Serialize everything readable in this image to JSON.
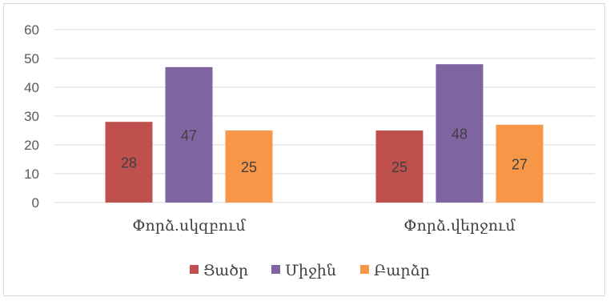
{
  "chart_data": {
    "type": "bar",
    "title": "",
    "xlabel": "",
    "ylabel": "",
    "ylim": [
      0,
      60
    ],
    "yticks": [
      0,
      10,
      20,
      30,
      40,
      50,
      60
    ],
    "grid": true,
    "legend_position": "bottom",
    "categories": [
      "Փորձ.սկզբում",
      "Փորձ.վերջում"
    ],
    "series": [
      {
        "name": "Ցածր",
        "color": "#c0504d",
        "values": [
          28,
          25
        ]
      },
      {
        "name": "Միջին",
        "color": "#8064a2",
        "values": [
          47,
          48
        ]
      },
      {
        "name": "Բարձր",
        "color": "#f79646",
        "values": [
          25,
          27
        ]
      }
    ]
  }
}
